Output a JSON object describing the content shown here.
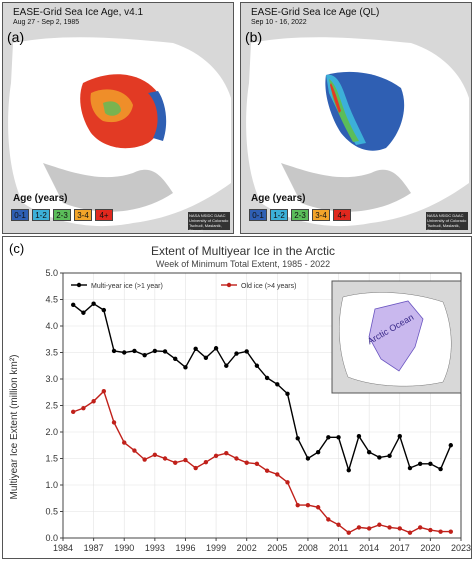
{
  "panel_a": {
    "title": "EASE-Grid Sea Ice Age, v4.1",
    "date": "Aug 27 - Sep 2, 1985",
    "label": "(a)",
    "legend_title": "Age (years)",
    "legend": [
      {
        "label": "0-1",
        "color": "#2f5fb3"
      },
      {
        "label": "1-2",
        "color": "#3cb0d8"
      },
      {
        "label": "2-3",
        "color": "#5bbd5a"
      },
      {
        "label": "3-4",
        "color": "#f2a42a"
      },
      {
        "label": "4+",
        "color": "#e0281e"
      }
    ],
    "credit": "NASA NSIDC DAAC University of Colorado Tschudi, Maslanik, Stewart"
  },
  "panel_b": {
    "title": "EASE-Grid Sea Ice Age (QL)",
    "date": "Sep 10 - 16, 2022",
    "label": "(b)",
    "legend_title": "Age (years)",
    "legend": [
      {
        "label": "0-1",
        "color": "#2f5fb3"
      },
      {
        "label": "1-2",
        "color": "#3cb0d8"
      },
      {
        "label": "2-3",
        "color": "#5bbd5a"
      },
      {
        "label": "3-4",
        "color": "#f2a42a"
      },
      {
        "label": "4+",
        "color": "#e0281e"
      }
    ],
    "credit": "NASA NSIDC DAAC University of Colorado Tschudi, Maslanik, Stewart"
  },
  "panel_c": {
    "label": "(c)",
    "inset_label": "Arctic Ocean"
  },
  "chart_data": {
    "type": "line",
    "title": "Extent of Multiyear Ice in the Arctic",
    "subtitle": "Week of Minimum Total Extent, 1985 - 2022",
    "xlabel": "",
    "ylabel": "Multiyear Ice Extent (million km²)",
    "xlim": [
      1984,
      2023
    ],
    "ylim": [
      0.0,
      5.0
    ],
    "xticks": [
      1984,
      1987,
      1990,
      1993,
      1996,
      1999,
      2002,
      2005,
      2008,
      2011,
      2014,
      2017,
      2020,
      2023
    ],
    "yticks": [
      0.0,
      0.5,
      1.0,
      1.5,
      2.0,
      2.5,
      3.0,
      3.5,
      4.0,
      4.5,
      5.0
    ],
    "legend_position": "top-left",
    "series": [
      {
        "name": "Multi-year ice (>1 year)",
        "color": "#000000",
        "x": [
          1985,
          1986,
          1987,
          1988,
          1989,
          1990,
          1991,
          1992,
          1993,
          1994,
          1995,
          1996,
          1997,
          1998,
          1999,
          2000,
          2001,
          2002,
          2003,
          2004,
          2005,
          2006,
          2007,
          2008,
          2009,
          2010,
          2011,
          2012,
          2013,
          2014,
          2015,
          2016,
          2017,
          2018,
          2019,
          2020,
          2021,
          2022
        ],
        "values": [
          4.4,
          4.25,
          4.42,
          4.3,
          3.53,
          3.5,
          3.53,
          3.45,
          3.53,
          3.52,
          3.38,
          3.22,
          3.57,
          3.4,
          3.58,
          3.25,
          3.48,
          3.52,
          3.25,
          3.02,
          2.9,
          2.72,
          1.88,
          1.5,
          1.62,
          1.9,
          1.9,
          1.28,
          1.92,
          1.62,
          1.52,
          1.55,
          1.92,
          1.32,
          1.4,
          1.4,
          1.3,
          1.75
        ]
      },
      {
        "name": "Old ice (>4 years)",
        "color": "#c0201a",
        "x": [
          1985,
          1986,
          1987,
          1988,
          1989,
          1990,
          1991,
          1992,
          1993,
          1994,
          1995,
          1996,
          1997,
          1998,
          1999,
          2000,
          2001,
          2002,
          2003,
          2004,
          2005,
          2006,
          2007,
          2008,
          2009,
          2010,
          2011,
          2012,
          2013,
          2014,
          2015,
          2016,
          2017,
          2018,
          2019,
          2020,
          2021,
          2022
        ],
        "values": [
          2.38,
          2.45,
          2.58,
          2.77,
          2.18,
          1.8,
          1.65,
          1.48,
          1.57,
          1.5,
          1.42,
          1.47,
          1.32,
          1.43,
          1.55,
          1.6,
          1.5,
          1.42,
          1.4,
          1.27,
          1.2,
          1.05,
          0.62,
          0.62,
          0.58,
          0.35,
          0.25,
          0.1,
          0.2,
          0.18,
          0.25,
          0.2,
          0.18,
          0.1,
          0.2,
          0.15,
          0.12,
          0.12
        ]
      }
    ]
  }
}
